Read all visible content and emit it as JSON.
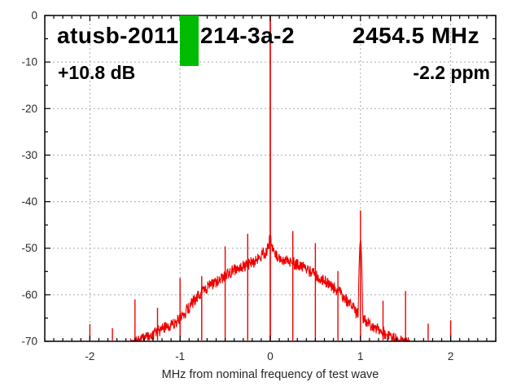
{
  "header": {
    "title_left": "atusb-2011",
    "title_right": "214-3a-2",
    "frequency": "2454.5 MHz",
    "gain": "+10.8 dB",
    "offset": "-2.2 ppm"
  },
  "chart_data": {
    "type": "line",
    "xlabel": "MHz from nominal frequency of test wave",
    "ylabel": "",
    "xlim": [
      -2.5,
      2.5
    ],
    "ylim": [
      -70,
      0
    ],
    "x_major_ticks": [
      -2,
      -1,
      0,
      1,
      2
    ],
    "x_minor_step": 0.1,
    "y_major_ticks": [
      0,
      -10,
      -20,
      -30,
      -40,
      -50,
      -60,
      -70
    ],
    "y_minor_step": 5,
    "grid": true,
    "legend": "none",
    "colors": {
      "trace": "#ee0000",
      "grid": "#a9a9a9",
      "frame": "#000000",
      "text": "#2b2b2b",
      "band_marker": "#00bb00"
    },
    "carrier": {
      "x": 0.0,
      "db": 0.0
    },
    "spurs": [
      {
        "x": -2.0,
        "db": -66.3
      },
      {
        "x": -1.75,
        "db": -67.2
      },
      {
        "x": -1.5,
        "db": -61.0
      },
      {
        "x": -1.25,
        "db": -62.8
      },
      {
        "x": -1.0,
        "db": -56.4
      },
      {
        "x": -0.76,
        "db": -56.0
      },
      {
        "x": -0.5,
        "db": -49.6
      },
      {
        "x": -0.25,
        "db": -46.9
      },
      {
        "x": 0.25,
        "db": -46.3
      },
      {
        "x": 0.5,
        "db": -48.9
      },
      {
        "x": 0.75,
        "db": -54.9
      },
      {
        "x": 1.0,
        "db": -41.9
      },
      {
        "x": 1.25,
        "db": -61.3
      },
      {
        "x": 1.5,
        "db": -59.2
      },
      {
        "x": 1.75,
        "db": -66.2
      },
      {
        "x": 2.0,
        "db": -65.5
      }
    ],
    "noise_floor": {
      "fuzz_db": 1.3,
      "range": [
        -1.55,
        1.55
      ],
      "control_points": [
        [
          -1.55,
          -70.5
        ],
        [
          -1.45,
          -70.0
        ],
        [
          -1.35,
          -68.9
        ],
        [
          -1.25,
          -67.9
        ],
        [
          -1.15,
          -66.9
        ],
        [
          -1.05,
          -65.9
        ],
        [
          -0.95,
          -63.9
        ],
        [
          -0.85,
          -61.4
        ],
        [
          -0.75,
          -59.3
        ],
        [
          -0.65,
          -57.8
        ],
        [
          -0.55,
          -56.5
        ],
        [
          -0.45,
          -55.3
        ],
        [
          -0.35,
          -54.2
        ],
        [
          -0.25,
          -53.4
        ],
        [
          -0.18,
          -52.9
        ],
        [
          -0.12,
          -52.3
        ],
        [
          -0.08,
          -50.9
        ],
        [
          -0.05,
          -51.4
        ],
        [
          -0.02,
          -49.2
        ],
        [
          0.0,
          -47.8
        ],
        [
          0.02,
          -49.5
        ],
        [
          0.05,
          -50.9
        ],
        [
          0.08,
          -51.7
        ],
        [
          0.12,
          -52.1
        ],
        [
          0.2,
          -52.7
        ],
        [
          0.3,
          -53.5
        ],
        [
          0.4,
          -54.5
        ],
        [
          0.5,
          -55.8
        ],
        [
          0.6,
          -57.1
        ],
        [
          0.7,
          -58.3
        ],
        [
          0.8,
          -60.1
        ],
        [
          0.9,
          -62.5
        ],
        [
          1.0,
          -64.9
        ],
        [
          1.1,
          -66.4
        ],
        [
          1.2,
          -67.5
        ],
        [
          1.3,
          -68.6
        ],
        [
          1.4,
          -69.6
        ],
        [
          1.55,
          -70.6
        ]
      ]
    },
    "bumps": [
      {
        "x": 1.0,
        "db": -48.5,
        "w": 0.018
      }
    ],
    "band_marker": {
      "x_start": -1.0,
      "x_end": -0.79,
      "db_top": 0,
      "db_bottom": -10.8
    }
  }
}
